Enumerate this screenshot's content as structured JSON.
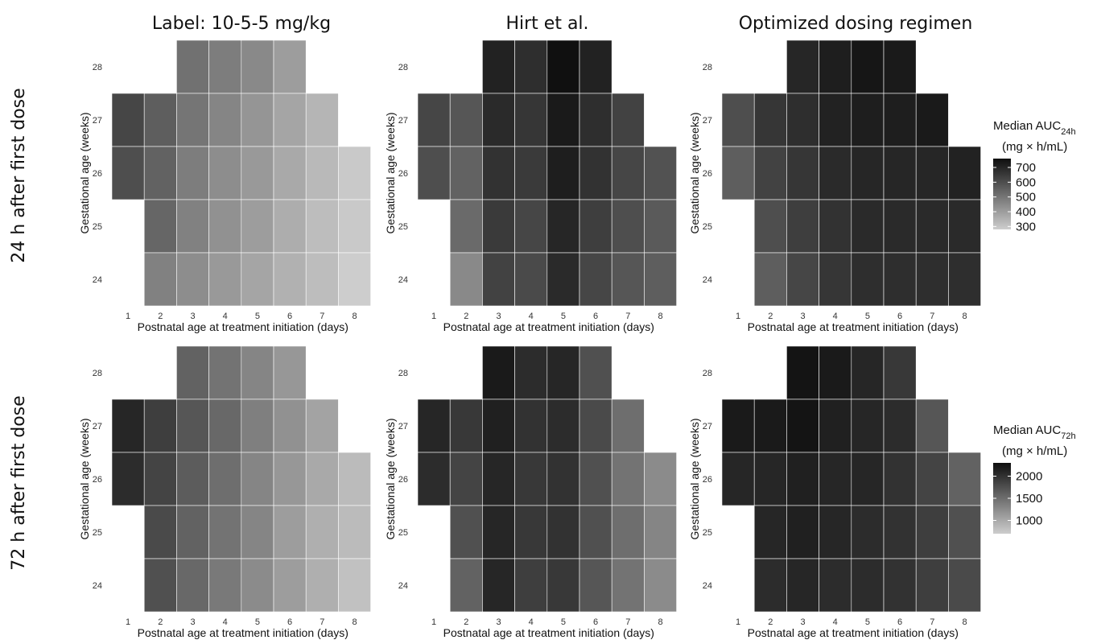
{
  "chart_data": {
    "type": "heatmap",
    "column_titles": [
      "Label: 10-5-5 mg/kg",
      "Hirt et al.",
      "Optimized dosing regimen"
    ],
    "row_titles": [
      "24 h after first dose",
      "72 h after first dose"
    ],
    "xlabel": "Postnatal age at treatment initiation (days)",
    "ylabel": "Gestational age (weeks)",
    "x_ticks": [
      "1",
      "2",
      "3",
      "4",
      "5",
      "6",
      "7",
      "8"
    ],
    "y_ticks": [
      "28",
      "27",
      "26",
      "25",
      "24"
    ],
    "rows_order_top_to_bottom": [
      28,
      27,
      26,
      25,
      24
    ],
    "legends": [
      {
        "title_main": "Median AUC",
        "title_sub": "24h",
        "units": "(mg × h/mL)",
        "ticks": [
          "700",
          "600",
          "500",
          "400",
          "300"
        ],
        "tick_values": [
          700,
          600,
          500,
          400,
          300
        ],
        "range": [
          280,
          760
        ]
      },
      {
        "title_main": "Median AUC",
        "title_sub": "72h",
        "units": "(mg × h/mL)",
        "ticks": [
          "2000",
          "1500",
          "1000"
        ],
        "tick_values": [
          2000,
          1500,
          1000
        ],
        "range": [
          700,
          2300
        ]
      }
    ],
    "panels": [
      {
        "name": "Label: 10-5-5 mg/kg — 24 h",
        "grid": [
          [
            null,
            null,
            510,
            480,
            450,
            400,
            null,
            null
          ],
          [
            620,
            560,
            500,
            460,
            420,
            380,
            340,
            null
          ],
          [
            600,
            550,
            480,
            440,
            410,
            370,
            330,
            290
          ],
          [
            null,
            540,
            470,
            430,
            400,
            360,
            320,
            290
          ],
          [
            null,
            470,
            440,
            410,
            380,
            350,
            320,
            280
          ]
        ]
      },
      {
        "name": "Hirt et al. — 24 h",
        "grid": [
          [
            null,
            null,
            710,
            680,
            755,
            710,
            null,
            null
          ],
          [
            620,
            580,
            690,
            660,
            730,
            680,
            630,
            null
          ],
          [
            600,
            550,
            670,
            650,
            720,
            670,
            620,
            590
          ],
          [
            null,
            530,
            650,
            620,
            700,
            640,
            600,
            570
          ],
          [
            null,
            450,
            630,
            610,
            690,
            620,
            580,
            560
          ]
        ]
      },
      {
        "name": "Optimized dosing regimen — 24 h",
        "grid": [
          [
            null,
            null,
            700,
            720,
            740,
            730,
            null,
            null
          ],
          [
            600,
            660,
            680,
            710,
            720,
            720,
            730,
            null
          ],
          [
            560,
            630,
            660,
            690,
            700,
            700,
            700,
            710
          ],
          [
            null,
            600,
            640,
            670,
            690,
            690,
            690,
            690
          ],
          [
            null,
            560,
            620,
            660,
            680,
            680,
            680,
            680
          ]
        ]
      },
      {
        "name": "Label: 10-5-5 mg/kg — 72 h",
        "grid": [
          [
            null,
            null,
            1600,
            1450,
            1300,
            1150,
            null,
            null
          ],
          [
            2100,
            1900,
            1700,
            1550,
            1350,
            1200,
            1050,
            null
          ],
          [
            2050,
            1850,
            1650,
            1500,
            1300,
            1150,
            1000,
            850
          ],
          [
            null,
            1800,
            1600,
            1450,
            1300,
            1100,
            950,
            850
          ],
          [
            null,
            1750,
            1550,
            1400,
            1250,
            1100,
            950,
            800
          ]
        ]
      },
      {
        "name": "Hirt et al. — 72 h",
        "grid": [
          [
            null,
            null,
            2200,
            2050,
            2100,
            1750,
            null,
            null
          ],
          [
            2100,
            1950,
            2150,
            2000,
            2050,
            1800,
            1500,
            null
          ],
          [
            2050,
            1850,
            2100,
            1950,
            2000,
            1750,
            1450,
            1250
          ],
          [
            null,
            1750,
            2100,
            1950,
            2000,
            1750,
            1500,
            1300
          ],
          [
            null,
            1600,
            2100,
            1900,
            1950,
            1700,
            1450,
            1250
          ]
        ]
      },
      {
        "name": "Optimized dosing regimen — 72 h",
        "grid": [
          [
            null,
            null,
            2250,
            2200,
            2100,
            1950,
            null,
            null
          ],
          [
            2200,
            2200,
            2250,
            2150,
            2100,
            2050,
            1700,
            null
          ],
          [
            2100,
            2100,
            2150,
            2100,
            2100,
            2000,
            1850,
            1600
          ],
          [
            null,
            2100,
            2150,
            2100,
            2050,
            2000,
            1900,
            1750
          ],
          [
            null,
            2050,
            2100,
            2050,
            2050,
            2000,
            1900,
            1800
          ]
        ]
      }
    ]
  }
}
